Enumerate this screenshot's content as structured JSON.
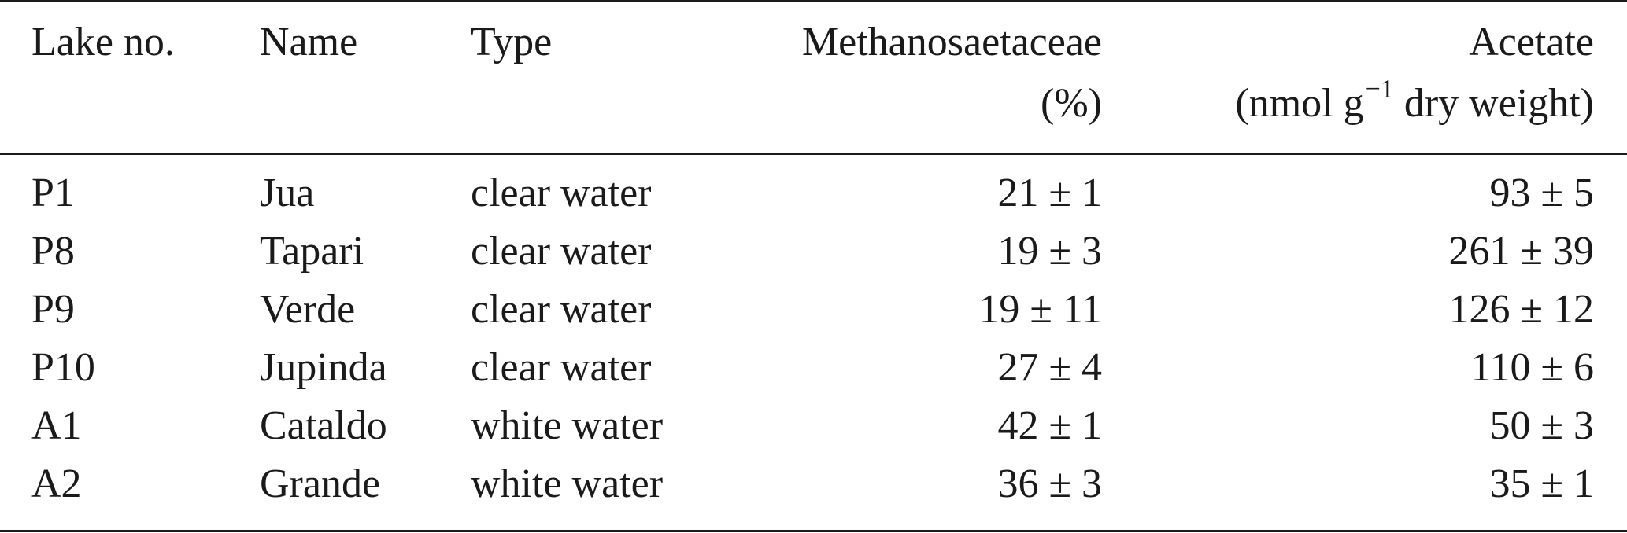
{
  "table": {
    "headers": {
      "lake_no": "Lake no.",
      "name": "Name",
      "type": "Type",
      "methanosaetaceae": "Methanosaetaceae",
      "methanosaetaceae_unit": "(%)",
      "acetate": "Acetate",
      "acetate_unit_pre": "(nmol g",
      "acetate_unit_exp": "−1",
      "acetate_unit_post": " dry weight)"
    },
    "rows": [
      {
        "lake_no": "P1",
        "name": "Jua",
        "type": "clear water",
        "methanosaetaceae": "21 ± 1",
        "acetate": "93 ± 5"
      },
      {
        "lake_no": "P8",
        "name": "Tapari",
        "type": "clear water",
        "methanosaetaceae": "19 ± 3",
        "acetate": "261 ± 39"
      },
      {
        "lake_no": "P9",
        "name": "Verde",
        "type": "clear water",
        "methanosaetaceae": "19 ± 11",
        "acetate": "126 ± 12"
      },
      {
        "lake_no": "P10",
        "name": "Jupinda",
        "type": "clear water",
        "methanosaetaceae": "27 ± 4",
        "acetate": "110 ± 6"
      },
      {
        "lake_no": "A1",
        "name": "Cataldo",
        "type": "white water",
        "methanosaetaceae": "42 ± 1",
        "acetate": "50 ± 3"
      },
      {
        "lake_no": "A2",
        "name": "Grande",
        "type": "white water",
        "methanosaetaceae": "36 ± 3",
        "acetate": "35 ± 1"
      }
    ]
  }
}
